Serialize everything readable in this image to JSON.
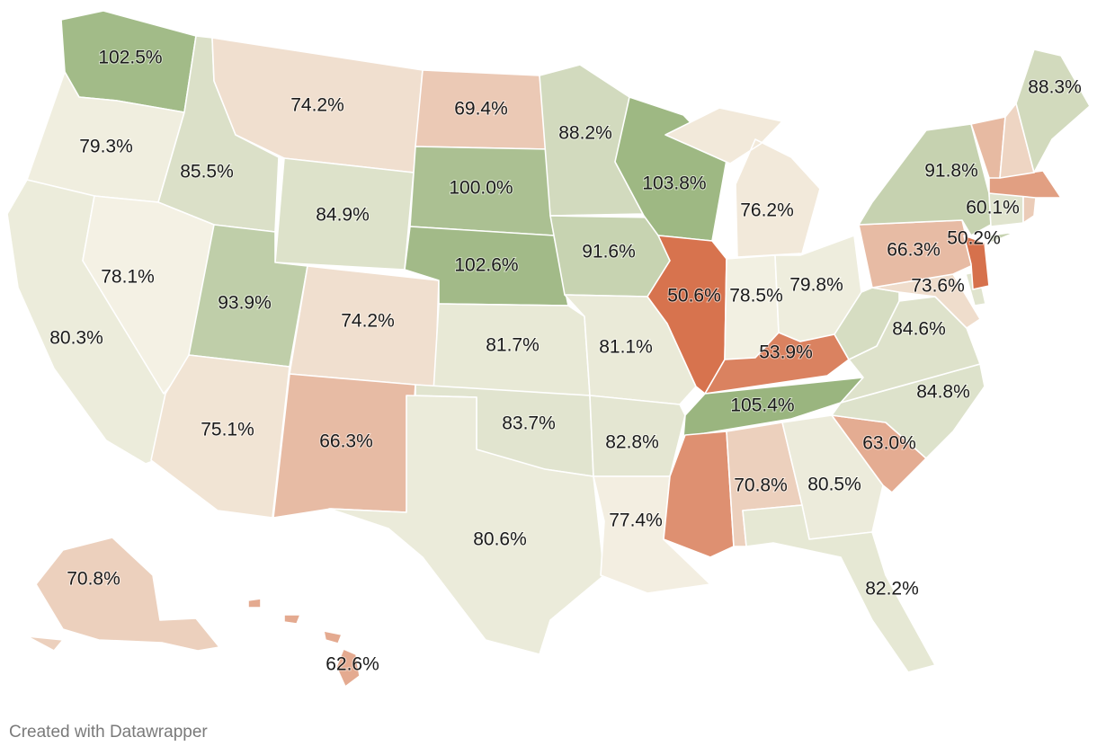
{
  "chart_data": {
    "type": "choropleth",
    "region": "United States",
    "unit": "%",
    "color_scale": {
      "low": "#d6704b",
      "mid": "#f4f1e4",
      "high": "#9ab57f"
    },
    "states": [
      {
        "id": "WA",
        "label": "102.5%",
        "value": 102.5
      },
      {
        "id": "OR",
        "label": "79.3%",
        "value": 79.3
      },
      {
        "id": "CA",
        "label": "80.3%",
        "value": 80.3
      },
      {
        "id": "ID",
        "label": "85.5%",
        "value": 85.5
      },
      {
        "id": "NV",
        "label": "78.1%",
        "value": 78.1
      },
      {
        "id": "MT",
        "label": "74.2%",
        "value": 74.2
      },
      {
        "id": "WY",
        "label": "84.9%",
        "value": 84.9
      },
      {
        "id": "UT",
        "label": "93.9%",
        "value": 93.9
      },
      {
        "id": "AZ",
        "label": "75.1%",
        "value": 75.1
      },
      {
        "id": "CO",
        "label": "74.2%",
        "value": 74.2
      },
      {
        "id": "NM",
        "label": "66.3%",
        "value": 66.3
      },
      {
        "id": "ND",
        "label": "69.4%",
        "value": 69.4
      },
      {
        "id": "SD",
        "label": "100.0%",
        "value": 100.0
      },
      {
        "id": "NE",
        "label": "102.6%",
        "value": 102.6
      },
      {
        "id": "KS",
        "label": "81.7%",
        "value": 81.7
      },
      {
        "id": "OK",
        "label": "83.7%",
        "value": 83.7
      },
      {
        "id": "TX",
        "label": "80.6%",
        "value": 80.6
      },
      {
        "id": "MN",
        "label": "88.2%",
        "value": 88.2
      },
      {
        "id": "IA",
        "label": "91.6%",
        "value": 91.6
      },
      {
        "id": "MO",
        "label": "81.1%",
        "value": 81.1
      },
      {
        "id": "AR",
        "label": "82.8%",
        "value": 82.8
      },
      {
        "id": "LA",
        "label": "77.4%",
        "value": 77.4
      },
      {
        "id": "WI",
        "label": "103.8%",
        "value": 103.8
      },
      {
        "id": "IL",
        "label": "50.6%",
        "value": 50.6
      },
      {
        "id": "MI",
        "label": "76.2%",
        "value": 76.2
      },
      {
        "id": "IN",
        "label": "78.5%",
        "value": 78.5
      },
      {
        "id": "OH",
        "label": "79.8%",
        "value": 79.8
      },
      {
        "id": "KY",
        "label": "53.9%",
        "value": 53.9
      },
      {
        "id": "TN",
        "label": "105.4%",
        "value": 105.4
      },
      {
        "id": "MS",
        "label": "",
        "value": 57.0
      },
      {
        "id": "AL",
        "label": "70.8%",
        "value": 70.8
      },
      {
        "id": "GA",
        "label": "80.5%",
        "value": 80.5
      },
      {
        "id": "FL",
        "label": "82.2%",
        "value": 82.2
      },
      {
        "id": "SC",
        "label": "63.0%",
        "value": 63.0
      },
      {
        "id": "NC",
        "label": "84.8%",
        "value": 84.8
      },
      {
        "id": "VA",
        "label": "84.6%",
        "value": 84.6
      },
      {
        "id": "WV",
        "label": "",
        "value": 87.0
      },
      {
        "id": "MD",
        "label": "73.6%",
        "value": 73.6
      },
      {
        "id": "DE",
        "label": "",
        "value": 84.0
      },
      {
        "id": "PA",
        "label": "66.3%",
        "value": 66.3
      },
      {
        "id": "NJ",
        "label": "50.2%",
        "value": 50.2
      },
      {
        "id": "NY",
        "label": "91.8%",
        "value": 91.8
      },
      {
        "id": "CT",
        "label": "",
        "value": 84.0
      },
      {
        "id": "RI",
        "label": "",
        "value": 70.0
      },
      {
        "id": "MA",
        "label": "60.1%",
        "value": 60.1
      },
      {
        "id": "VT",
        "label": "",
        "value": 66.0
      },
      {
        "id": "NH",
        "label": "",
        "value": 72.0
      },
      {
        "id": "ME",
        "label": "88.3%",
        "value": 88.3
      },
      {
        "id": "AK",
        "label": "70.8%",
        "value": 70.8
      },
      {
        "id": "HI",
        "label": "62.6%",
        "value": 62.6
      }
    ]
  },
  "credit": "Created with Datawrapper"
}
